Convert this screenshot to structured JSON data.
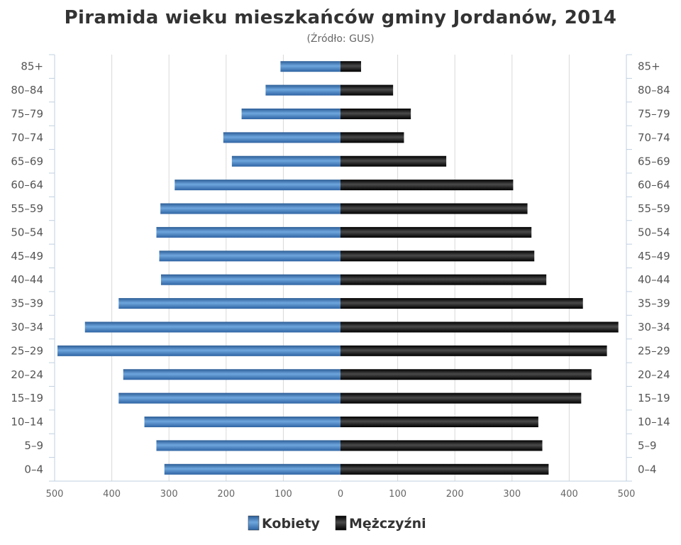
{
  "chart_data": {
    "type": "bar",
    "orientation": "horizontal",
    "layout": "population-pyramid",
    "title": "Piramida wieku mieszkańców gminy Jordanów, 2014",
    "subtitle": "(Źródło: GUS)",
    "categories": [
      "0–4",
      "5–9",
      "10–14",
      "15–19",
      "20–24",
      "25–29",
      "30–34",
      "35–39",
      "40–44",
      "45–49",
      "50–54",
      "55–59",
      "60–64",
      "65–69",
      "70–74",
      "75–79",
      "80–84",
      "85+"
    ],
    "series": [
      {
        "name": "Kobiety",
        "side": "left",
        "color": "#4a86c5",
        "values": [
          308,
          322,
          343,
          388,
          380,
          495,
          447,
          388,
          314,
          317,
          322,
          315,
          290,
          190,
          205,
          173,
          131,
          105
        ]
      },
      {
        "name": "Mężczyźni",
        "side": "right",
        "color": "#111111",
        "values": [
          364,
          353,
          346,
          421,
          439,
          466,
          486,
          424,
          360,
          339,
          334,
          327,
          302,
          185,
          111,
          123,
          92,
          36
        ]
      }
    ],
    "x_ticks": [
      "500",
      "400",
      "300",
      "200",
      "100",
      "0",
      "100",
      "200",
      "300",
      "400",
      "500"
    ],
    "xlim": [
      -500,
      500
    ],
    "grid": true,
    "legend": "bottom-center"
  }
}
